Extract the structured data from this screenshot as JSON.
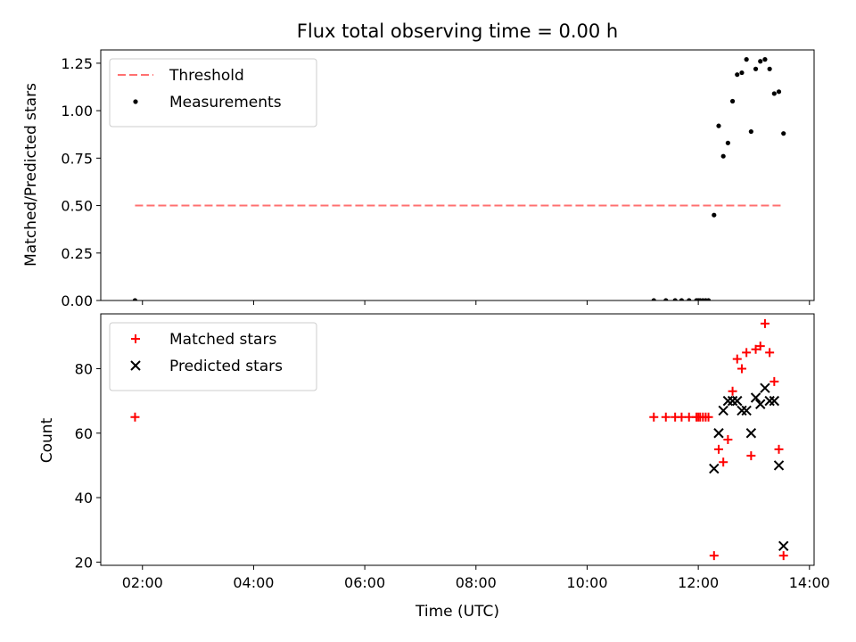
{
  "chart_data": [
    {
      "type": "scatter",
      "title": "Flux total observing time = 0.00 h",
      "xlabel": "",
      "ylabel": "Matched/Predicted stars",
      "xlim": [
        "01:15",
        "14:05"
      ],
      "ylim": [
        0,
        1.32
      ],
      "yticks": [
        0.0,
        0.25,
        0.5,
        0.75,
        1.0,
        1.25
      ],
      "ytick_labels": [
        "0.00",
        "0.25",
        "0.50",
        "0.75",
        "1.00",
        "1.25"
      ],
      "legend_position": "top-left",
      "threshold": {
        "name": "Threshold",
        "y": 0.5,
        "x_range": [
          "01:52",
          "13:32"
        ],
        "color": "#ff7070"
      },
      "series": [
        {
          "name": "Measurements",
          "color": "#000000",
          "marker": "dot",
          "points": [
            [
              "01:52",
              0.0
            ],
            [
              "11:12",
              0.0
            ],
            [
              "11:25",
              0.0
            ],
            [
              "11:35",
              0.0
            ],
            [
              "11:42",
              0.0
            ],
            [
              "11:50",
              0.0
            ],
            [
              "11:58",
              0.0
            ],
            [
              "12:00",
              0.0
            ],
            [
              "12:02",
              0.0
            ],
            [
              "12:05",
              0.0
            ],
            [
              "12:08",
              0.0
            ],
            [
              "12:11",
              0.0
            ],
            [
              "12:17",
              0.45
            ],
            [
              "12:22",
              0.92
            ],
            [
              "12:27",
              0.76
            ],
            [
              "12:32",
              0.83
            ],
            [
              "12:37",
              1.05
            ],
            [
              "12:42",
              1.19
            ],
            [
              "12:47",
              1.2
            ],
            [
              "12:52",
              1.27
            ],
            [
              "12:57",
              0.89
            ],
            [
              "13:02",
              1.22
            ],
            [
              "13:07",
              1.26
            ],
            [
              "13:12",
              1.27
            ],
            [
              "13:17",
              1.22
            ],
            [
              "13:22",
              1.09
            ],
            [
              "13:27",
              1.1
            ],
            [
              "13:32",
              0.88
            ]
          ]
        }
      ]
    },
    {
      "type": "scatter",
      "title": "",
      "xlabel": "Time (UTC)",
      "ylabel": "Count",
      "xlim": [
        "01:15",
        "14:05"
      ],
      "ylim": [
        19,
        97
      ],
      "xticks": [
        "02:00",
        "04:00",
        "06:00",
        "08:00",
        "10:00",
        "12:00",
        "14:00"
      ],
      "yticks": [
        20,
        40,
        60,
        80
      ],
      "legend_position": "top-left",
      "series": [
        {
          "name": "Matched stars",
          "color": "#ff0000",
          "marker": "plus",
          "points": [
            [
              "01:52",
              65
            ],
            [
              "11:12",
              65
            ],
            [
              "11:25",
              65
            ],
            [
              "11:35",
              65
            ],
            [
              "11:42",
              65
            ],
            [
              "11:50",
              65
            ],
            [
              "11:58",
              65
            ],
            [
              "12:00",
              65
            ],
            [
              "12:02",
              65
            ],
            [
              "12:05",
              65
            ],
            [
              "12:08",
              65
            ],
            [
              "12:11",
              65
            ],
            [
              "12:17",
              22
            ],
            [
              "12:22",
              55
            ],
            [
              "12:27",
              51
            ],
            [
              "12:32",
              58
            ],
            [
              "12:37",
              73
            ],
            [
              "12:42",
              83
            ],
            [
              "12:47",
              80
            ],
            [
              "12:52",
              85
            ],
            [
              "12:57",
              53
            ],
            [
              "13:02",
              86
            ],
            [
              "13:07",
              87
            ],
            [
              "13:12",
              94
            ],
            [
              "13:17",
              85
            ],
            [
              "13:22",
              76
            ],
            [
              "13:27",
              55
            ],
            [
              "13:32",
              22
            ]
          ]
        },
        {
          "name": "Predicted stars",
          "color": "#000000",
          "marker": "x",
          "points": [
            [
              "12:17",
              49
            ],
            [
              "12:22",
              60
            ],
            [
              "12:27",
              67
            ],
            [
              "12:32",
              70
            ],
            [
              "12:37",
              70
            ],
            [
              "12:42",
              70
            ],
            [
              "12:47",
              67
            ],
            [
              "12:52",
              67
            ],
            [
              "12:57",
              60
            ],
            [
              "13:02",
              71
            ],
            [
              "13:07",
              69
            ],
            [
              "13:12",
              74
            ],
            [
              "13:17",
              70
            ],
            [
              "13:22",
              70
            ],
            [
              "13:27",
              50
            ],
            [
              "13:32",
              25
            ]
          ]
        }
      ]
    }
  ]
}
